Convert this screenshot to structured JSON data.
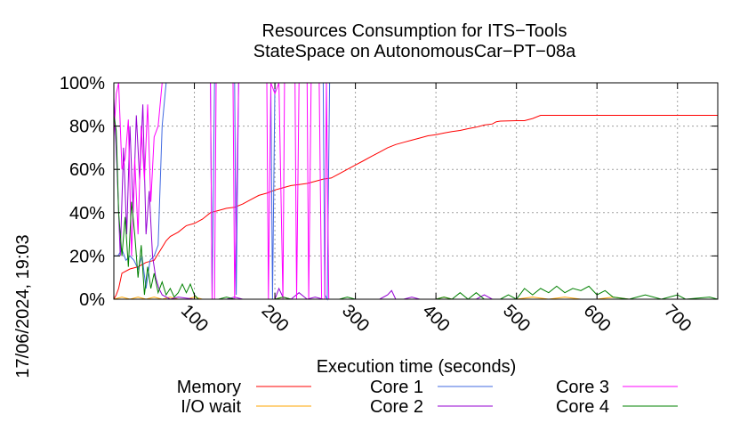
{
  "chart_data": {
    "type": "line",
    "title": "Resources Consumption for ITS−Tools",
    "subtitle": "StateSpace on AutonomousCar−PT−08a",
    "xlabel": "Execution time (seconds)",
    "ylabel": "",
    "side_label": "17/06/2024, 19:03",
    "xlim": [
      0,
      750
    ],
    "ylim": [
      0,
      100
    ],
    "x_ticks": [
      100,
      200,
      300,
      400,
      500,
      600,
      700
    ],
    "x_tick_labels": [
      "100",
      "200",
      "300",
      "400",
      "500",
      "600",
      "700"
    ],
    "y_ticks": [
      0,
      20,
      40,
      60,
      80,
      100
    ],
    "y_tick_labels": [
      "0%",
      "20%",
      "40%",
      "60%",
      "80%",
      "100%"
    ],
    "grid": true,
    "legend_placement": "bottom",
    "series": [
      {
        "name": "Memory",
        "color": "#ff0000",
        "points": [
          [
            0,
            0
          ],
          [
            3,
            2
          ],
          [
            6,
            5
          ],
          [
            10,
            12
          ],
          [
            20,
            14
          ],
          [
            30,
            15
          ],
          [
            40,
            17
          ],
          [
            50,
            18
          ],
          [
            55,
            21
          ],
          [
            60,
            24
          ],
          [
            65,
            27
          ],
          [
            70,
            29
          ],
          [
            80,
            31
          ],
          [
            90,
            34
          ],
          [
            100,
            35
          ],
          [
            110,
            37
          ],
          [
            120,
            40
          ],
          [
            130,
            41
          ],
          [
            140,
            42
          ],
          [
            150,
            42.5
          ],
          [
            160,
            44
          ],
          [
            170,
            46
          ],
          [
            180,
            48
          ],
          [
            190,
            49
          ],
          [
            200,
            50.5
          ],
          [
            210,
            51.5
          ],
          [
            220,
            52.5
          ],
          [
            230,
            53
          ],
          [
            240,
            53.5
          ],
          [
            250,
            54.5
          ],
          [
            260,
            55.5
          ],
          [
            270,
            56
          ],
          [
            280,
            58
          ],
          [
            290,
            60
          ],
          [
            300,
            62
          ],
          [
            310,
            64
          ],
          [
            320,
            66
          ],
          [
            330,
            68
          ],
          [
            340,
            70
          ],
          [
            350,
            71.5
          ],
          [
            360,
            72.5
          ],
          [
            370,
            73.5
          ],
          [
            380,
            74.5
          ],
          [
            390,
            75.5
          ],
          [
            400,
            76
          ],
          [
            410,
            76.8
          ],
          [
            420,
            77.5
          ],
          [
            430,
            78
          ],
          [
            440,
            78.8
          ],
          [
            450,
            79.5
          ],
          [
            460,
            80.5
          ],
          [
            470,
            81
          ],
          [
            475,
            82
          ],
          [
            480,
            82.3
          ],
          [
            500,
            82.5
          ],
          [
            510,
            82.5
          ],
          [
            520,
            83.5
          ],
          [
            530,
            85
          ],
          [
            750,
            85
          ]
        ]
      },
      {
        "name": "I/O wait",
        "color": "#ffa500",
        "points": [
          [
            0,
            0
          ],
          [
            10,
            1
          ],
          [
            20,
            0
          ],
          [
            30,
            1
          ],
          [
            40,
            0
          ],
          [
            50,
            1
          ],
          [
            60,
            0
          ],
          [
            70,
            1
          ],
          [
            80,
            0
          ],
          [
            90,
            0
          ],
          [
            100,
            1
          ],
          [
            110,
            0
          ],
          [
            200,
            0
          ],
          [
            210,
            1
          ],
          [
            220,
            0
          ],
          [
            400,
            0
          ],
          [
            410,
            1
          ],
          [
            420,
            0
          ],
          [
            500,
            0
          ],
          [
            520,
            1
          ],
          [
            540,
            0
          ],
          [
            560,
            1
          ],
          [
            580,
            0
          ],
          [
            600,
            0
          ],
          [
            620,
            1
          ],
          [
            640,
            0
          ],
          [
            750,
            0
          ]
        ]
      },
      {
        "name": "Core 1",
        "color": "#4169e1",
        "points": [
          [
            0,
            20
          ],
          [
            5,
            20
          ],
          [
            10,
            23
          ],
          [
            15,
            18
          ],
          [
            20,
            20
          ],
          [
            25,
            18
          ],
          [
            30,
            14
          ],
          [
            35,
            20
          ],
          [
            40,
            5
          ],
          [
            45,
            18
          ],
          [
            50,
            20
          ],
          [
            55,
            25
          ],
          [
            60,
            80
          ],
          [
            65,
            100
          ],
          [
            120,
            100
          ],
          [
            122,
            0
          ],
          [
            125,
            100
          ],
          [
            130,
            100
          ],
          [
            150,
            100
          ],
          [
            152,
            2
          ],
          [
            155,
            100
          ],
          [
            195,
            100
          ],
          [
            197,
            0
          ],
          [
            200,
            100
          ],
          [
            260,
            100
          ],
          [
            262,
            2
          ],
          [
            265,
            0
          ],
          [
            268,
            100
          ],
          [
            750,
            100
          ]
        ]
      },
      {
        "name": "Core 2",
        "color": "#9400d3",
        "points": [
          [
            0,
            93
          ],
          [
            4,
            60
          ],
          [
            8,
            20
          ],
          [
            12,
            70
          ],
          [
            16,
            30
          ],
          [
            20,
            80
          ],
          [
            24,
            40
          ],
          [
            28,
            85
          ],
          [
            32,
            55
          ],
          [
            36,
            90
          ],
          [
            40,
            30
          ],
          [
            44,
            50
          ],
          [
            48,
            20
          ],
          [
            52,
            10
          ],
          [
            56,
            5
          ],
          [
            60,
            2
          ],
          [
            70,
            0
          ],
          [
            80,
            1
          ],
          [
            100,
            0
          ],
          [
            140,
            0
          ],
          [
            150,
            1
          ],
          [
            160,
            0
          ],
          [
            200,
            0
          ],
          [
            205,
            5
          ],
          [
            210,
            1
          ],
          [
            220,
            0
          ],
          [
            230,
            3
          ],
          [
            240,
            0
          ],
          [
            250,
            1
          ],
          [
            260,
            0
          ],
          [
            330,
            0
          ],
          [
            340,
            2
          ],
          [
            345,
            4
          ],
          [
            350,
            0
          ],
          [
            360,
            0
          ],
          [
            370,
            1
          ],
          [
            380,
            0
          ],
          [
            400,
            0
          ],
          [
            450,
            0
          ],
          [
            460,
            2
          ],
          [
            470,
            0
          ],
          [
            750,
            0
          ]
        ]
      },
      {
        "name": "Core 3",
        "color": "#ff00ff",
        "points": [
          [
            0,
            75
          ],
          [
            3,
            95
          ],
          [
            6,
            100
          ],
          [
            10,
            60
          ],
          [
            14,
            65
          ],
          [
            18,
            83
          ],
          [
            22,
            20
          ],
          [
            26,
            65
          ],
          [
            30,
            30
          ],
          [
            34,
            80
          ],
          [
            38,
            55
          ],
          [
            42,
            90
          ],
          [
            46,
            45
          ],
          [
            50,
            75
          ],
          [
            55,
            80
          ],
          [
            60,
            100
          ],
          [
            120,
            100
          ],
          [
            122,
            0
          ],
          [
            125,
            0
          ],
          [
            127,
            100
          ],
          [
            148,
            100
          ],
          [
            150,
            0
          ],
          [
            155,
            100
          ],
          [
            190,
            100
          ],
          [
            192,
            0
          ],
          [
            195,
            100
          ],
          [
            200,
            95
          ],
          [
            205,
            100
          ],
          [
            210,
            0
          ],
          [
            212,
            100
          ],
          [
            225,
            100
          ],
          [
            227,
            0
          ],
          [
            230,
            100
          ],
          [
            240,
            100
          ],
          [
            242,
            0
          ],
          [
            245,
            100
          ],
          [
            255,
            100
          ],
          [
            258,
            0
          ],
          [
            262,
            0
          ],
          [
            264,
            100
          ],
          [
            267,
            0
          ],
          [
            270,
            0
          ],
          [
            300,
            0
          ],
          [
            400,
            0
          ],
          [
            750,
            0
          ]
        ]
      },
      {
        "name": "Core 4",
        "color": "#008000",
        "points": [
          [
            0,
            85
          ],
          [
            3,
            78
          ],
          [
            6,
            40
          ],
          [
            10,
            20
          ],
          [
            14,
            38
          ],
          [
            18,
            15
          ],
          [
            22,
            45
          ],
          [
            26,
            30
          ],
          [
            30,
            10
          ],
          [
            34,
            25
          ],
          [
            38,
            2
          ],
          [
            42,
            15
          ],
          [
            46,
            5
          ],
          [
            50,
            12
          ],
          [
            55,
            3
          ],
          [
            60,
            8
          ],
          [
            65,
            2
          ],
          [
            70,
            5
          ],
          [
            75,
            1
          ],
          [
            80,
            3
          ],
          [
            85,
            7
          ],
          [
            90,
            3
          ],
          [
            95,
            7
          ],
          [
            100,
            2
          ],
          [
            105,
            0
          ],
          [
            120,
            0
          ],
          [
            130,
            0
          ],
          [
            140,
            1
          ],
          [
            150,
            0
          ],
          [
            200,
            0
          ],
          [
            210,
            1
          ],
          [
            220,
            0
          ],
          [
            280,
            0
          ],
          [
            290,
            1
          ],
          [
            300,
            0
          ],
          [
            400,
            0
          ],
          [
            410,
            1
          ],
          [
            420,
            0
          ],
          [
            430,
            3
          ],
          [
            440,
            0
          ],
          [
            450,
            3
          ],
          [
            460,
            0
          ],
          [
            480,
            0
          ],
          [
            490,
            2
          ],
          [
            500,
            0
          ],
          [
            510,
            5
          ],
          [
            520,
            2
          ],
          [
            530,
            5
          ],
          [
            540,
            3
          ],
          [
            550,
            6
          ],
          [
            560,
            3
          ],
          [
            570,
            5
          ],
          [
            580,
            4
          ],
          [
            590,
            6
          ],
          [
            600,
            2
          ],
          [
            610,
            4
          ],
          [
            620,
            1
          ],
          [
            640,
            0
          ],
          [
            660,
            2
          ],
          [
            680,
            0
          ],
          [
            700,
            2
          ],
          [
            710,
            0
          ],
          [
            740,
            1
          ],
          [
            750,
            0
          ]
        ]
      }
    ]
  }
}
